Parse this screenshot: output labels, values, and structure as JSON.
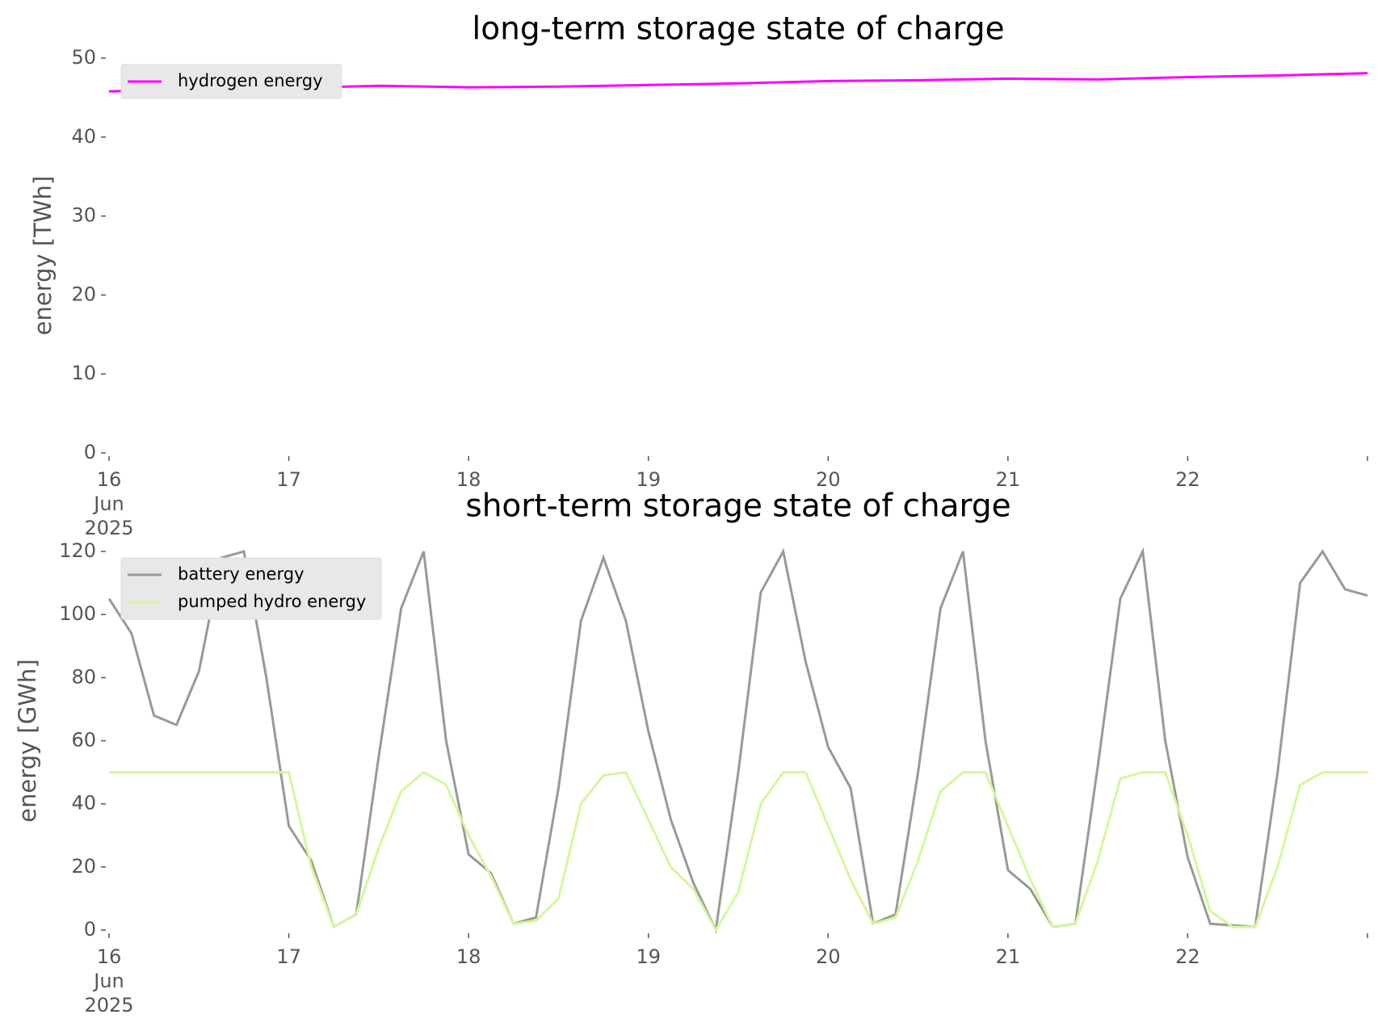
{
  "chart_data": [
    {
      "type": "line",
      "title": "long-term storage state of charge",
      "y_label": "energy [TWh]",
      "x": [
        16,
        16.5,
        17,
        17.5,
        18,
        18.5,
        19,
        19.5,
        20,
        20.5,
        21,
        21.5,
        22,
        22.5,
        23
      ],
      "series": [
        {
          "name": "hydrogen energy",
          "color": "#ff00ff",
          "values": [
            45.8,
            46.0,
            46.2,
            46.5,
            46.3,
            46.4,
            46.6,
            46.8,
            47.1,
            47.2,
            47.4,
            47.3,
            47.6,
            47.8,
            48.1
          ]
        }
      ],
      "xlim": [
        16,
        23
      ],
      "xticks": [
        {
          "value": 16,
          "label": [
            "16",
            "Jun",
            "2025"
          ]
        },
        17,
        18,
        19,
        20,
        21,
        22,
        {
          "value": 23,
          "label": null
        }
      ],
      "ylim": [
        0,
        50
      ],
      "yticks": [
        0,
        10,
        20,
        30,
        40,
        50
      ],
      "legend": "upper left",
      "grid": false
    },
    {
      "type": "line",
      "title": "short-term storage state of charge",
      "y_label": "energy [GWh]",
      "x": [
        16,
        16.125,
        16.25,
        16.375,
        16.5,
        16.625,
        16.75,
        16.875,
        17,
        17.125,
        17.25,
        17.375,
        17.5,
        17.625,
        17.75,
        17.875,
        18,
        18.125,
        18.25,
        18.375,
        18.5,
        18.625,
        18.75,
        18.875,
        19,
        19.125,
        19.25,
        19.375,
        19.5,
        19.625,
        19.75,
        19.875,
        20,
        20.125,
        20.25,
        20.375,
        20.5,
        20.625,
        20.75,
        20.875,
        21,
        21.125,
        21.25,
        21.375,
        21.5,
        21.625,
        21.75,
        21.875,
        22,
        22.125,
        22.25,
        22.375,
        22.5,
        22.625,
        22.75,
        22.875,
        23
      ],
      "series": [
        {
          "name": "battery energy",
          "color": "#999999",
          "values": [
            105,
            94,
            68,
            65,
            82,
            118,
            120,
            80,
            33,
            22,
            1,
            5,
            55,
            102,
            120,
            60,
            24,
            18,
            2,
            4,
            45,
            98,
            118,
            98,
            63,
            35,
            15,
            0,
            50,
            107,
            120,
            85,
            58,
            45,
            2,
            5,
            50,
            102,
            120,
            60,
            19,
            13,
            1,
            2,
            52,
            105,
            120,
            60,
            23,
            2,
            1.5,
            1,
            50,
            110,
            120,
            108,
            106
          ]
        },
        {
          "name": "pumped hydro energy",
          "color": "#d4f79c",
          "values": [
            50,
            50,
            50,
            50,
            50,
            50,
            50,
            50,
            50,
            20,
            1,
            5,
            26,
            44,
            50,
            46,
            30,
            17,
            2,
            3,
            10,
            40,
            49,
            50,
            35,
            20,
            13,
            0,
            12,
            40,
            50,
            50,
            33,
            16,
            2,
            4,
            22,
            44,
            50,
            50,
            33,
            16,
            1,
            2,
            22,
            48,
            50,
            50,
            30,
            6,
            1,
            1,
            20,
            46,
            50,
            50,
            50
          ]
        }
      ],
      "xlim": [
        16,
        23
      ],
      "xticks": [
        {
          "value": 16,
          "label": [
            "16",
            "Jun",
            "2025"
          ]
        },
        17,
        18,
        19,
        20,
        21,
        22,
        {
          "value": 23,
          "label": null
        }
      ],
      "ylim": [
        0,
        120
      ],
      "yticks": [
        0,
        20,
        40,
        60,
        80,
        100,
        120
      ],
      "legend": "upper left",
      "grid": false
    }
  ]
}
